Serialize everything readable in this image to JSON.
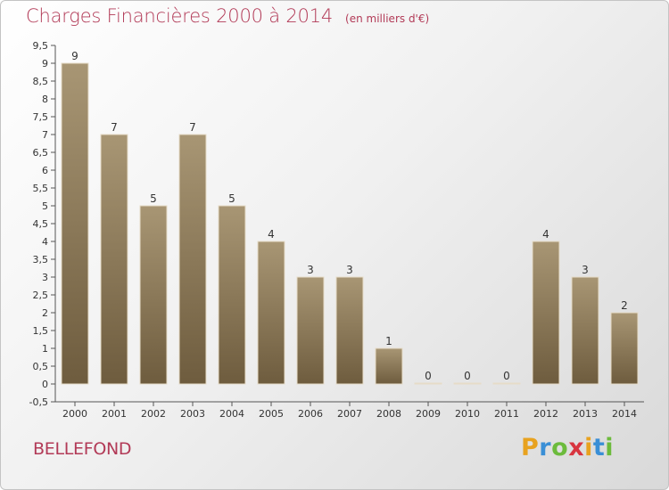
{
  "title": "Charges Financières 2000 à 2014",
  "unit": "(en milliers d'€)",
  "place": "BELLEFOND",
  "logo": {
    "letters": [
      "P",
      "r",
      "o",
      "x",
      "i",
      "t",
      "i"
    ],
    "colors": [
      "#e8a21f",
      "#3a8fd6",
      "#6cbb3c",
      "#d8353f",
      "#e8a21f",
      "#3a8fd6",
      "#6cbb3c"
    ]
  },
  "colors": {
    "accent": "#b23a57",
    "bar_top": "#a89674",
    "bar_bottom": "#6e5c3e",
    "axis": "#555555"
  },
  "chart_data": {
    "type": "bar",
    "categories": [
      "2000",
      "2001",
      "2002",
      "2003",
      "2004",
      "2005",
      "2006",
      "2007",
      "2008",
      "2009",
      "2010",
      "2011",
      "2012",
      "2013",
      "2014"
    ],
    "values": [
      9,
      7,
      5,
      7,
      5,
      4,
      3,
      3,
      1,
      0,
      0,
      0,
      4,
      3,
      2
    ],
    "ylim": [
      -0.5,
      9.5
    ],
    "yticks": [
      "-0,5",
      "0",
      "0,5",
      "1",
      "1,5",
      "2",
      "2,5",
      "3",
      "3,5",
      "4",
      "4,5",
      "5",
      "5,5",
      "6",
      "6,5",
      "7",
      "7,5",
      "8",
      "8,5",
      "9",
      "9,5"
    ],
    "grid": false,
    "legend": "none"
  }
}
